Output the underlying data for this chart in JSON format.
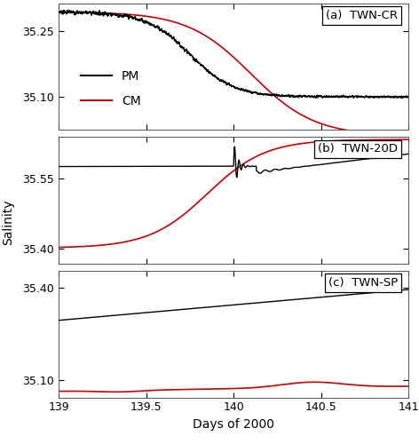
{
  "xlim": [
    139,
    141
  ],
  "xticks": [
    139,
    139.5,
    140,
    140.5,
    141
  ],
  "xtick_labels": [
    "139",
    "139.5",
    "140",
    "140.5",
    "141"
  ],
  "xlabel": "Days of 2000",
  "ylabel": "Salinity",
  "panels": [
    {
      "label": "(a)  TWN-CR",
      "ylim": [
        35.025,
        35.315
      ],
      "yticks": [
        35.1,
        35.25
      ],
      "legend": true
    },
    {
      "label": "(b)  TWN-20D",
      "ylim": [
        35.368,
        35.638
      ],
      "yticks": [
        35.4,
        35.55
      ]
    },
    {
      "label": "(c)  TWN-SP",
      "ylim": [
        35.045,
        35.455
      ],
      "yticks": [
        35.1,
        35.4
      ]
    }
  ],
  "pm_color": "#000000",
  "cm_color": "#cc0000",
  "bg_color": "#ffffff",
  "spine_color": "#aaaaaa",
  "linewidth_pm": 1.0,
  "linewidth_cm": 1.2
}
